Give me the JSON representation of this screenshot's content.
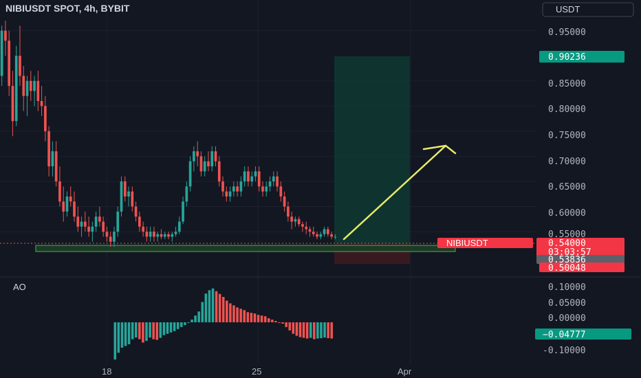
{
  "header": {
    "title": "NIBIUSDT SPOT, 4h, BYBIT",
    "currency_button": "USDT"
  },
  "indicator_label": "AO",
  "price_axis_ticks": [
    "0.95000",
    "0.85000",
    "0.80000",
    "0.75000",
    "0.70000",
    "0.65000",
    "0.60000",
    "0.55000"
  ],
  "ao_axis_ticks": [
    "0.10000",
    "0.05000",
    "0.00000",
    "-0.10000"
  ],
  "badges": {
    "target": "0.90236",
    "symbol": "NIBIUSDT",
    "last_price": "0.54000",
    "countdown": "03:03:57",
    "mid_price": "0.53836",
    "stop": "0.50048",
    "ao_value": "−0.04777"
  },
  "time_axis": {
    "labels": [
      "18",
      "25",
      "Apr"
    ]
  },
  "colors": {
    "background": "#131722",
    "up": "#26a69a",
    "down": "#ef5350",
    "text": "#b2b5be",
    "arrow": "#e8ea6a",
    "profit_zone": "#0f3a33",
    "loss_zone": "#3e1a20",
    "support_zone": "#1d3a26"
  },
  "chart_data": [
    {
      "type": "candlestick",
      "title": "NIBIUSDT SPOT, 4h, BYBIT",
      "y_range": [
        0.505,
        0.97
      ],
      "x_range": [
        0,
        165
      ],
      "x_labels": [
        {
          "x": 36,
          "label": "18"
        },
        {
          "x": 88,
          "label": "25"
        },
        {
          "x": 140,
          "label": "Apr"
        }
      ],
      "ohlc": [
        [
          0.86,
          0.96,
          0.84,
          0.95
        ],
        [
          0.95,
          0.97,
          0.9,
          0.93
        ],
        [
          0.93,
          0.95,
          0.82,
          0.84
        ],
        [
          0.84,
          0.87,
          0.74,
          0.77
        ],
        [
          0.77,
          0.92,
          0.76,
          0.9
        ],
        [
          0.9,
          0.96,
          0.84,
          0.86
        ],
        [
          0.86,
          0.88,
          0.79,
          0.82
        ],
        [
          0.82,
          0.86,
          0.78,
          0.85
        ],
        [
          0.85,
          0.87,
          0.81,
          0.83
        ],
        [
          0.83,
          0.86,
          0.8,
          0.85
        ],
        [
          0.85,
          0.87,
          0.79,
          0.81
        ],
        [
          0.81,
          0.84,
          0.78,
          0.8
        ],
        [
          0.8,
          0.82,
          0.73,
          0.75
        ],
        [
          0.75,
          0.76,
          0.66,
          0.68
        ],
        [
          0.68,
          0.73,
          0.66,
          0.71
        ],
        [
          0.71,
          0.73,
          0.64,
          0.65
        ],
        [
          0.65,
          0.68,
          0.6,
          0.61
        ],
        [
          0.61,
          0.64,
          0.57,
          0.59
        ],
        [
          0.59,
          0.63,
          0.58,
          0.62
        ],
        [
          0.62,
          0.64,
          0.6,
          0.61
        ],
        [
          0.61,
          0.63,
          0.57,
          0.58
        ],
        [
          0.58,
          0.6,
          0.55,
          0.56
        ],
        [
          0.56,
          0.58,
          0.54,
          0.57
        ],
        [
          0.57,
          0.59,
          0.55,
          0.56
        ],
        [
          0.56,
          0.58,
          0.54,
          0.55
        ],
        [
          0.55,
          0.57,
          0.53,
          0.56
        ],
        [
          0.56,
          0.59,
          0.55,
          0.58
        ],
        [
          0.58,
          0.6,
          0.56,
          0.57
        ],
        [
          0.57,
          0.58,
          0.54,
          0.55
        ],
        [
          0.55,
          0.56,
          0.53,
          0.54
        ],
        [
          0.54,
          0.55,
          0.52,
          0.53
        ],
        [
          0.53,
          0.56,
          0.52,
          0.55
        ],
        [
          0.55,
          0.6,
          0.54,
          0.59
        ],
        [
          0.59,
          0.66,
          0.58,
          0.65
        ],
        [
          0.65,
          0.66,
          0.61,
          0.62
        ],
        [
          0.62,
          0.64,
          0.6,
          0.63
        ],
        [
          0.63,
          0.64,
          0.59,
          0.6
        ],
        [
          0.6,
          0.61,
          0.57,
          0.58
        ],
        [
          0.58,
          0.59,
          0.55,
          0.56
        ],
        [
          0.56,
          0.57,
          0.54,
          0.55
        ],
        [
          0.55,
          0.56,
          0.53,
          0.54
        ],
        [
          0.54,
          0.56,
          0.53,
          0.55
        ],
        [
          0.55,
          0.56,
          0.53,
          0.54
        ],
        [
          0.54,
          0.55,
          0.53,
          0.545
        ],
        [
          0.545,
          0.555,
          0.535,
          0.54
        ],
        [
          0.54,
          0.55,
          0.535,
          0.545
        ],
        [
          0.545,
          0.55,
          0.535,
          0.54
        ],
        [
          0.54,
          0.55,
          0.53,
          0.545
        ],
        [
          0.545,
          0.56,
          0.54,
          0.55
        ],
        [
          0.55,
          0.58,
          0.545,
          0.57
        ],
        [
          0.57,
          0.62,
          0.565,
          0.61
        ],
        [
          0.61,
          0.65,
          0.6,
          0.64
        ],
        [
          0.64,
          0.7,
          0.63,
          0.69
        ],
        [
          0.69,
          0.72,
          0.67,
          0.71
        ],
        [
          0.71,
          0.73,
          0.68,
          0.7
        ],
        [
          0.7,
          0.71,
          0.66,
          0.67
        ],
        [
          0.67,
          0.7,
          0.66,
          0.69
        ],
        [
          0.69,
          0.71,
          0.67,
          0.68
        ],
        [
          0.68,
          0.72,
          0.67,
          0.71
        ],
        [
          0.71,
          0.72,
          0.68,
          0.69
        ],
        [
          0.69,
          0.7,
          0.64,
          0.65
        ],
        [
          0.65,
          0.66,
          0.62,
          0.63
        ],
        [
          0.63,
          0.64,
          0.61,
          0.62
        ],
        [
          0.62,
          0.64,
          0.61,
          0.63
        ],
        [
          0.63,
          0.65,
          0.62,
          0.64
        ],
        [
          0.64,
          0.65,
          0.62,
          0.63
        ],
        [
          0.63,
          0.66,
          0.62,
          0.65
        ],
        [
          0.65,
          0.68,
          0.64,
          0.67
        ],
        [
          0.67,
          0.68,
          0.64,
          0.65
        ],
        [
          0.65,
          0.67,
          0.64,
          0.66
        ],
        [
          0.66,
          0.68,
          0.65,
          0.67
        ],
        [
          0.67,
          0.68,
          0.63,
          0.64
        ],
        [
          0.64,
          0.65,
          0.62,
          0.63
        ],
        [
          0.63,
          0.65,
          0.62,
          0.64
        ],
        [
          0.64,
          0.66,
          0.63,
          0.65
        ],
        [
          0.65,
          0.67,
          0.64,
          0.66
        ],
        [
          0.66,
          0.67,
          0.63,
          0.64
        ],
        [
          0.64,
          0.65,
          0.61,
          0.62
        ],
        [
          0.62,
          0.63,
          0.59,
          0.6
        ],
        [
          0.6,
          0.61,
          0.57,
          0.58
        ],
        [
          0.58,
          0.59,
          0.555,
          0.57
        ],
        [
          0.57,
          0.58,
          0.56,
          0.575
        ],
        [
          0.575,
          0.58,
          0.56,
          0.565
        ],
        [
          0.565,
          0.57,
          0.55,
          0.56
        ],
        [
          0.56,
          0.57,
          0.545,
          0.555
        ],
        [
          0.555,
          0.56,
          0.54,
          0.55
        ],
        [
          0.55,
          0.56,
          0.54,
          0.545
        ],
        [
          0.545,
          0.55,
          0.535,
          0.54
        ],
        [
          0.54,
          0.55,
          0.535,
          0.545
        ],
        [
          0.545,
          0.56,
          0.54,
          0.555
        ],
        [
          0.555,
          0.56,
          0.54,
          0.545
        ],
        [
          0.545,
          0.55,
          0.535,
          0.54
        ],
        [
          0.54,
          0.545,
          0.535,
          0.54
        ]
      ]
    },
    {
      "type": "histogram",
      "title": "AO",
      "y_range": [
        -0.12,
        0.13
      ],
      "values": [
        -0.11,
        -0.09,
        -0.075,
        -0.07,
        -0.065,
        -0.05,
        -0.045,
        -0.05,
        -0.06,
        -0.055,
        -0.045,
        -0.05,
        -0.052,
        -0.046,
        -0.038,
        -0.034,
        -0.03,
        -0.026,
        -0.02,
        -0.014,
        -0.008,
        0.0,
        0.008,
        0.02,
        0.032,
        0.06,
        0.085,
        0.095,
        0.1,
        0.092,
        0.084,
        0.075,
        0.064,
        0.056,
        0.05,
        0.044,
        0.04,
        0.036,
        0.03,
        0.028,
        0.026,
        0.022,
        0.02,
        0.018,
        0.012,
        0.008,
        0.004,
        0.0,
        -0.004,
        -0.014,
        -0.024,
        -0.034,
        -0.04,
        -0.044,
        -0.046,
        -0.048,
        -0.046,
        -0.05,
        -0.048,
        -0.047,
        -0.045,
        -0.047,
        -0.048
      ]
    }
  ]
}
